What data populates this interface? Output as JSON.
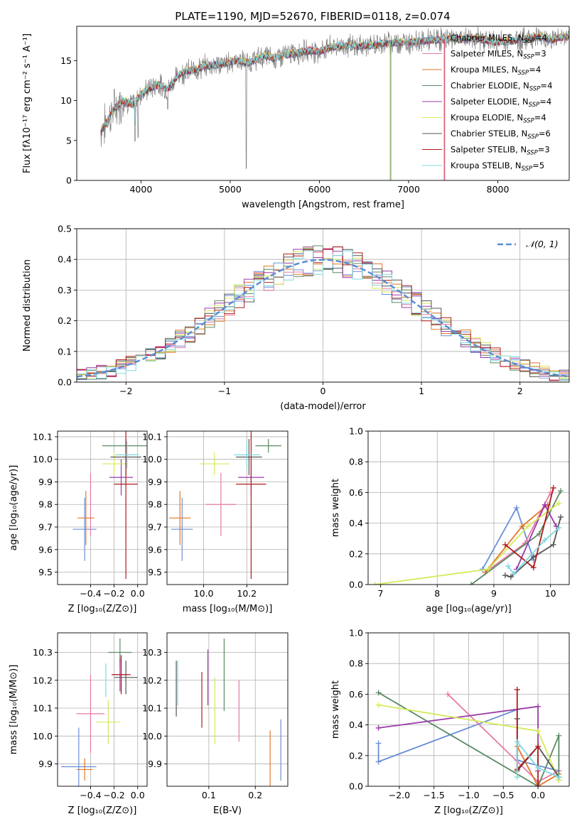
{
  "figure": {
    "title": "PLATE=1190, MJD=52670, FIBERID=0118, z=0.074"
  },
  "models": [
    {
      "name": "Chabrier MILES",
      "nssp": "4",
      "color": "#6a8fd8"
    },
    {
      "name": "Salpeter MILES",
      "nssp": "3",
      "color": "#e87aa6"
    },
    {
      "name": "Kroupa MILES",
      "nssp": "4",
      "color": "#e0782a"
    },
    {
      "name": "Chabrier ELODIE",
      "nssp": "4",
      "color": "#5b8a64"
    },
    {
      "name": "Salpeter ELODIE",
      "nssp": "4",
      "color": "#9a3aa8"
    },
    {
      "name": "Kroupa ELODIE",
      "nssp": "4",
      "color": "#d5ea5a"
    },
    {
      "name": "Chabrier STELIB",
      "nssp": "6",
      "color": "#555555"
    },
    {
      "name": "Salpeter STELIB",
      "nssp": "3",
      "color": "#b01c1c"
    },
    {
      "name": "Kroupa STELIB",
      "nssp": "5",
      "color": "#7fd8e0"
    }
  ],
  "chart_data": [
    {
      "id": "spectrum",
      "type": "line",
      "xlabel": "wavelength [Angstrom, rest frame]",
      "ylabel": "Flux [fλ10⁻¹⁷ erg cm⁻² s⁻¹ A⁻¹]",
      "xlim": [
        3280,
        8800
      ],
      "ylim": [
        0,
        19.3
      ],
      "xticks": [
        "4000",
        "5000",
        "6000",
        "7000",
        "8000"
      ],
      "yticks": [
        "0",
        "5",
        "10",
        "15"
      ],
      "observed_color": "#7f7f7f",
      "spectrum_x": [
        3550,
        3600,
        3700,
        3800,
        3900,
        4000,
        4100,
        4200,
        4300,
        4400,
        4500,
        4600,
        4700,
        4800,
        4900,
        5000,
        5100,
        5200,
        5300,
        5400,
        5500,
        5600,
        5700,
        5800,
        5900,
        6000,
        6100,
        6200,
        6300,
        6400,
        6500,
        6600,
        6700,
        6800,
        6900,
        7000,
        7100,
        7200,
        7300,
        7400,
        7500,
        7600,
        7700,
        7800,
        7900,
        8000,
        8100,
        8200,
        8300,
        8400,
        8500,
        8600,
        8700,
        8800
      ],
      "spectrum_y": [
        6.2,
        7.0,
        9.0,
        10.0,
        9.5,
        10.8,
        11.6,
        12.0,
        11.4,
        13.0,
        13.7,
        13.8,
        14.2,
        14.5,
        14.5,
        14.9,
        15.0,
        14.7,
        15.2,
        15.6,
        15.3,
        15.7,
        15.9,
        16.1,
        16.3,
        16.1,
        16.6,
        16.8,
        16.9,
        16.8,
        16.9,
        16.9,
        17.2,
        17.2,
        17.3,
        17.3,
        17.4,
        17.5,
        17.6,
        17.7,
        17.8,
        17.7,
        17.8,
        17.7,
        17.5,
        17.3,
        17.4,
        17.6,
        17.7,
        17.9,
        18.0,
        17.6,
        17.9,
        18.0
      ]
    },
    {
      "id": "residuals",
      "type": "histogram",
      "xlabel": "(data-model)/error",
      "ylabel": "Normed distribution",
      "xlim": [
        -2.5,
        2.5
      ],
      "ylim": [
        0,
        0.5
      ],
      "xticks": [
        "−2",
        "−1",
        "0",
        "1",
        "2"
      ],
      "yticks": [
        "0.0",
        "0.1",
        "0.2",
        "0.3",
        "0.4",
        "0.5"
      ],
      "bin_width": 0.1,
      "reference": {
        "label": "𝒩(0, 1)",
        "color": "#5b8ed6",
        "mu": 0,
        "sigma": 1
      }
    },
    {
      "id": "age-vs-Z",
      "type": "scatter",
      "xlabel": "Z [log₁₀(Z/Z⊙)]",
      "ylabel": "age  [log₁₀(age/yr)]",
      "xlim": [
        -0.68,
        0.08
      ],
      "ylim": [
        9.445,
        10.125
      ],
      "xticks": [
        "−0.4",
        "−0.2",
        "0.0"
      ],
      "yticks": [
        "9.5",
        "9.6",
        "9.7",
        "9.8",
        "9.9",
        "10.0",
        "10.1"
      ],
      "points": [
        {
          "x": -0.45,
          "xe": 0.1,
          "y": 9.69,
          "ye": 0.14
        },
        {
          "x": -0.4,
          "xe": 0.0,
          "y": 9.8,
          "ye": 0.14
        },
        {
          "x": -0.44,
          "xe": 0.07,
          "y": 9.74,
          "ye": 0.12
        },
        {
          "x": -0.1,
          "xe": 0.2,
          "y": 10.06,
          "ye": 0.03
        },
        {
          "x": -0.14,
          "xe": 0.1,
          "y": 9.92,
          "ye": 0.08
        },
        {
          "x": -0.2,
          "xe": 0.1,
          "y": 9.98,
          "ye": 0.05
        },
        {
          "x": -0.1,
          "xe": 0.13,
          "y": 10.01,
          "ye": 0.08
        },
        {
          "x": -0.1,
          "xe": 0.1,
          "y": 9.89,
          "ye": 0.42
        },
        {
          "x": -0.09,
          "xe": 0.1,
          "y": 10.02,
          "ye": 0.06
        }
      ]
    },
    {
      "id": "age-vs-mass",
      "type": "scatter",
      "xlabel": "mass [log₁₀(M/M⊙)]",
      "ylabel": "",
      "xlim": [
        9.83,
        10.39
      ],
      "ylim": [
        9.445,
        10.125
      ],
      "xticks": [
        "10.0",
        "10.2"
      ],
      "yticks": [
        "9.5",
        "9.6",
        "9.7",
        "9.8",
        "9.9",
        "10.0",
        "10.1"
      ],
      "points": [
        {
          "x": 9.9,
          "xe": 0.05,
          "y": 9.69,
          "ye": 0.14
        },
        {
          "x": 10.08,
          "xe": 0.07,
          "y": 9.8,
          "ye": 0.14
        },
        {
          "x": 9.89,
          "xe": 0.05,
          "y": 9.74,
          "ye": 0.12
        },
        {
          "x": 10.3,
          "xe": 0.06,
          "y": 10.06,
          "ye": 0.03
        },
        {
          "x": 10.22,
          "xe": 0.06,
          "y": 9.92,
          "ye": 0.08
        },
        {
          "x": 10.05,
          "xe": 0.07,
          "y": 9.98,
          "ye": 0.05
        },
        {
          "x": 10.21,
          "xe": 0.06,
          "y": 10.01,
          "ye": 0.08
        },
        {
          "x": 10.22,
          "xe": 0.07,
          "y": 9.89,
          "ye": 0.42
        },
        {
          "x": 10.2,
          "xe": 0.06,
          "y": 10.02,
          "ye": 0.06
        }
      ]
    },
    {
      "id": "weight-vs-age",
      "type": "line",
      "xlabel": "age  [log₁₀(age/yr)]",
      "ylabel": "mass weight",
      "xlim": [
        6.78,
        10.33
      ],
      "ylim": [
        0,
        1.0
      ],
      "xticks": [
        "7",
        "8",
        "9",
        "10"
      ],
      "yticks": [
        "0.0",
        "0.2",
        "0.4",
        "0.6",
        "0.8",
        "1.0"
      ],
      "series": [
        {
          "x": [
            8.8,
            9.4,
            9.7
          ],
          "y": [
            0.1,
            0.5,
            0.16
          ]
        },
        {
          "x": [
            8.85,
            9.55,
            10.0
          ],
          "y": [
            0.08,
            0.27,
            0.6
          ]
        },
        {
          "x": [
            8.85,
            9.5,
            9.95
          ],
          "y": [
            0.08,
            0.38,
            0.52
          ]
        },
        {
          "x": [
            8.6,
            9.8,
            10.18
          ],
          "y": [
            0.0,
            0.33,
            0.61
          ]
        },
        {
          "x": [
            9.4,
            9.9,
            10.1
          ],
          "y": [
            0.1,
            0.52,
            0.38
          ]
        },
        {
          "x": [
            6.9,
            8.9,
            9.6,
            10.15
          ],
          "y": [
            0.0,
            0.1,
            0.38,
            0.53
          ]
        },
        {
          "x": [
            9.2,
            9.3,
            9.7,
            10.05,
            10.18
          ],
          "y": [
            0.06,
            0.05,
            0.18,
            0.26,
            0.44
          ]
        },
        {
          "x": [
            9.2,
            9.7,
            10.05
          ],
          "y": [
            0.26,
            0.11,
            0.63
          ]
        },
        {
          "x": [
            9.25,
            9.35,
            9.9,
            10.15
          ],
          "y": [
            0.12,
            0.07,
            0.29,
            0.37
          ]
        }
      ]
    },
    {
      "id": "mass-vs-Z",
      "type": "scatter",
      "xlabel": "Z [log₁₀(Z/Z⊙)]",
      "ylabel": "mass [log₁₀(M/M⊙)]",
      "xlim": [
        -0.68,
        0.08
      ],
      "ylim": [
        9.82,
        10.37
      ],
      "xticks": [
        "−0.4",
        "−0.2",
        "0.0"
      ],
      "yticks": [
        "9.9",
        "10.0",
        "10.1",
        "10.2",
        "10.3"
      ],
      "points": [
        {
          "x": -0.5,
          "xe": 0.15,
          "y": 9.89,
          "ye": 0.14
        },
        {
          "x": -0.4,
          "xe": 0.12,
          "y": 10.08,
          "ye": 0.14
        },
        {
          "x": -0.45,
          "xe": 0.07,
          "y": 9.88,
          "ye": 0.04
        },
        {
          "x": -0.15,
          "xe": 0.1,
          "y": 10.3,
          "ye": 0.05
        },
        {
          "x": -0.15,
          "xe": 0.07,
          "y": 10.22,
          "ye": 0.06
        },
        {
          "x": -0.25,
          "xe": 0.1,
          "y": 10.05,
          "ye": 0.08
        },
        {
          "x": -0.1,
          "xe": 0.1,
          "y": 10.21,
          "ye": 0.06
        },
        {
          "x": -0.14,
          "xe": 0.08,
          "y": 10.22,
          "ye": 0.07
        },
        {
          "x": -0.27,
          "xe": 0.0,
          "y": 10.2,
          "ye": 0.06
        }
      ]
    },
    {
      "id": "mass-vs-ebv",
      "type": "scatter",
      "xlabel": "E(B-V)",
      "ylabel": "",
      "xlim": [
        0.01,
        0.27
      ],
      "ylim": [
        9.82,
        10.37
      ],
      "xticks": [
        "0.1",
        "0.2"
      ],
      "yticks": [
        "9.9",
        "10.0",
        "10.1",
        "10.2",
        "10.3"
      ],
      "points": [
        {
          "x": 0.255,
          "xe": 0.0,
          "y": 9.95,
          "ye": 0.11
        },
        {
          "x": 0.165,
          "xe": 0.0,
          "y": 10.09,
          "ye": 0.11
        },
        {
          "x": 0.232,
          "xe": 0.0,
          "y": 9.91,
          "ye": 0.11
        },
        {
          "x": 0.133,
          "xe": 0.0,
          "y": 10.22,
          "ye": 0.13
        },
        {
          "x": 0.098,
          "xe": 0.0,
          "y": 10.21,
          "ye": 0.1
        },
        {
          "x": 0.113,
          "xe": 0.0,
          "y": 10.09,
          "ye": 0.12
        },
        {
          "x": 0.03,
          "xe": 0.0,
          "y": 10.17,
          "ye": 0.1
        },
        {
          "x": 0.085,
          "xe": 0.0,
          "y": 10.13,
          "ye": 0.1
        },
        {
          "x": 0.033,
          "xe": 0.0,
          "y": 10.19,
          "ye": 0.08
        }
      ]
    },
    {
      "id": "weight-vs-Z",
      "type": "line",
      "xlabel": "Z [log₁₀(Z/Z⊙)]",
      "ylabel": "mass weight",
      "xlim": [
        -2.45,
        0.45
      ],
      "ylim": [
        0,
        1.0
      ],
      "xticks": [
        "−2.0",
        "−1.5",
        "−1.0",
        "−0.5",
        "0.0"
      ],
      "yticks": [
        "0.0",
        "0.2",
        "0.4",
        "0.6",
        "0.8",
        "1.0"
      ],
      "series": [
        {
          "x": [
            -2.3,
            -2.3,
            -0.3,
            -0.3,
            0.3
          ],
          "y": [
            0.28,
            0.16,
            0.5,
            0.17,
            0.1
          ]
        },
        {
          "x": [
            -1.3,
            0.0,
            0.3
          ],
          "y": [
            0.6,
            0.03,
            0.1
          ]
        },
        {
          "x": [
            -0.3,
            0.0,
            0.3
          ],
          "y": [
            0.26,
            0.0,
            0.08
          ]
        },
        {
          "x": [
            -2.3,
            0.0,
            0.3,
            0.3
          ],
          "y": [
            0.61,
            0.0,
            0.33,
            0.04
          ]
        },
        {
          "x": [
            -2.3,
            0.0,
            0.0
          ],
          "y": [
            0.38,
            0.52,
            0.1
          ]
        },
        {
          "x": [
            -2.3,
            0.0,
            0.3
          ],
          "y": [
            0.53,
            0.36,
            0.04
          ]
        },
        {
          "x": [
            -0.3,
            -0.3,
            0.0,
            0.3
          ],
          "y": [
            0.44,
            0.1,
            0.26,
            0.06
          ]
        },
        {
          "x": [
            -0.3,
            -0.3,
            0.0,
            0.0
          ],
          "y": [
            0.63,
            0.11,
            0.26,
            0.0
          ]
        },
        {
          "x": [
            -0.3,
            -0.3,
            0.0,
            0.3
          ],
          "y": [
            0.06,
            0.29,
            0.12,
            0.06
          ]
        }
      ]
    }
  ]
}
